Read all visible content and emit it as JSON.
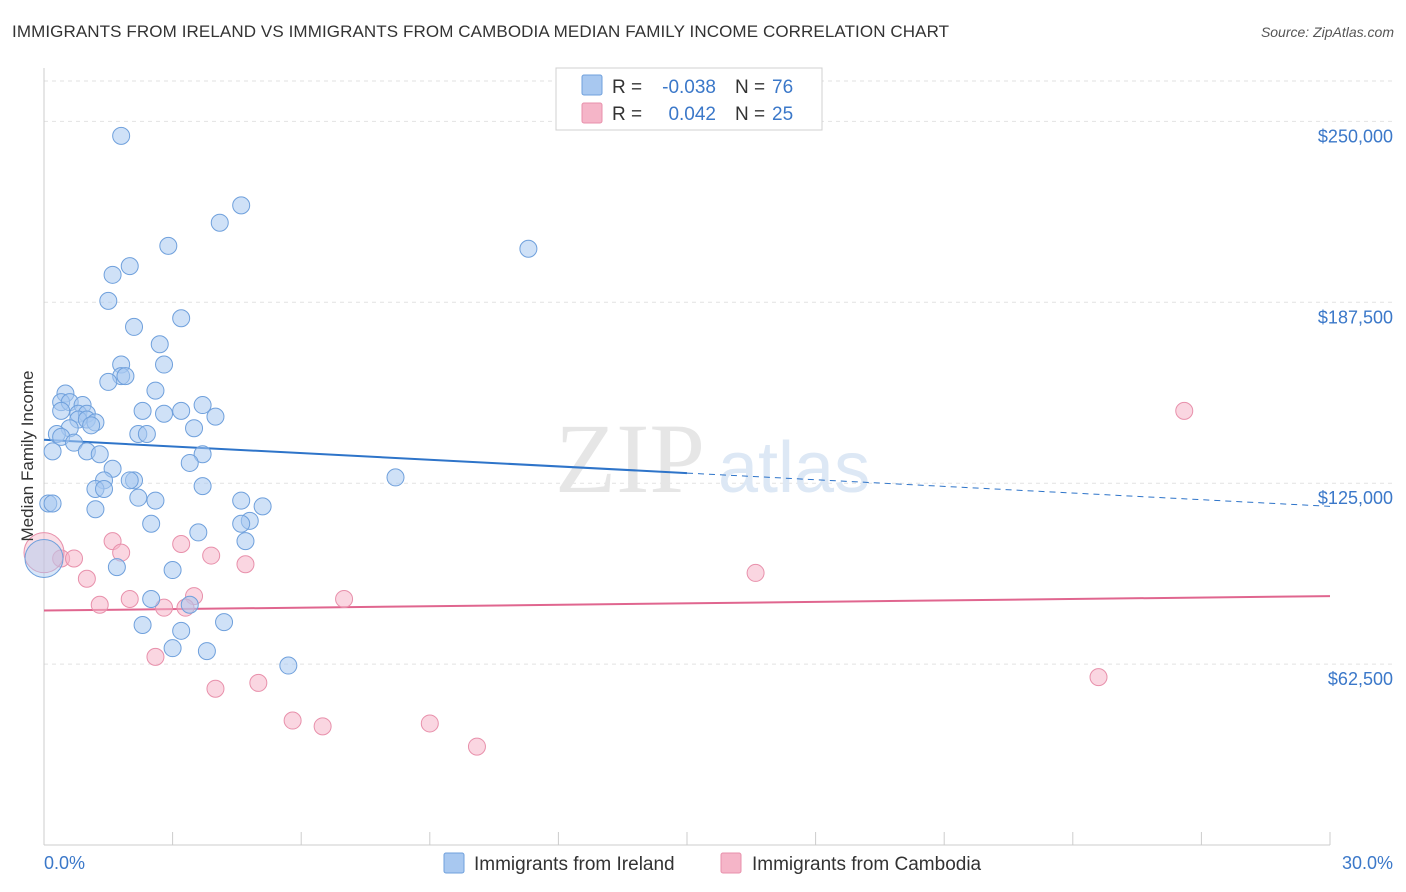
{
  "title": "IMMIGRANTS FROM IRELAND VS IMMIGRANTS FROM CAMBODIA MEDIAN FAMILY INCOME CORRELATION CHART",
  "source": "Source: ZipAtlas.com",
  "watermark": {
    "zip": "ZIP",
    "atlas": "atlas"
  },
  "legend_box": {
    "rows": [
      {
        "r_label": "R = ",
        "r_value": "-0.038",
        "n_label": "N = ",
        "n_value": "76",
        "color": "#a8c8f0"
      },
      {
        "r_label": "R = ",
        "r_value": "0.042",
        "n_label": "N = ",
        "n_value": "25",
        "color": "#f5b5c8"
      }
    ]
  },
  "colors": {
    "ireland_fill": "#a8c8f0",
    "ireland_stroke": "#6fa0dc",
    "ireland_line": "#2e74c9",
    "cambodia_fill": "#f5b5c8",
    "cambodia_stroke": "#e890ab",
    "cambodia_line": "#e0668f",
    "accent_text": "#3b78c9"
  },
  "chart_data": {
    "type": "scatter",
    "title": "IMMIGRANTS FROM IRELAND VS IMMIGRANTS FROM CAMBODIA MEDIAN FAMILY INCOME CORRELATION CHART",
    "xlabel": "",
    "ylabel": "Median Family Income",
    "xlim": [
      0,
      30
    ],
    "ylim": [
      0,
      265000
    ],
    "x_tick_labels": [
      "0.0%",
      "30.0%"
    ],
    "y_ticks": [
      62500,
      125000,
      187500,
      250000
    ],
    "y_tick_labels": [
      "$62,500",
      "$125,000",
      "$187,500",
      "$250,000"
    ],
    "grid": "horizontal dashed",
    "legend_position": "bottom-center",
    "series": [
      {
        "name": "Immigrants from Ireland",
        "r": -0.038,
        "n": 76,
        "trend": {
          "x": [
            0,
            30
          ],
          "y": [
            140000,
            117000
          ],
          "solid_until": 15
        },
        "points": [
          [
            1.8,
            245000
          ],
          [
            4.6,
            221000
          ],
          [
            4.1,
            215000
          ],
          [
            11.3,
            206000
          ],
          [
            2.9,
            207000
          ],
          [
            2.0,
            200000
          ],
          [
            1.6,
            197000
          ],
          [
            1.5,
            188000
          ],
          [
            3.2,
            182000
          ],
          [
            2.1,
            179000
          ],
          [
            2.7,
            173000
          ],
          [
            2.8,
            166000
          ],
          [
            1.8,
            166000
          ],
          [
            1.8,
            162000
          ],
          [
            1.9,
            162000
          ],
          [
            1.5,
            160000
          ],
          [
            2.6,
            157000
          ],
          [
            0.5,
            156000
          ],
          [
            0.4,
            153000
          ],
          [
            0.6,
            153000
          ],
          [
            0.9,
            152000
          ],
          [
            3.7,
            152000
          ],
          [
            0.4,
            150000
          ],
          [
            2.3,
            150000
          ],
          [
            3.2,
            150000
          ],
          [
            0.8,
            149000
          ],
          [
            1.0,
            149000
          ],
          [
            2.8,
            149000
          ],
          [
            4.0,
            148000
          ],
          [
            0.8,
            147000
          ],
          [
            1.0,
            147000
          ],
          [
            1.2,
            146000
          ],
          [
            1.1,
            145000
          ],
          [
            0.6,
            144000
          ],
          [
            3.5,
            144000
          ],
          [
            0.3,
            142000
          ],
          [
            2.2,
            142000
          ],
          [
            2.4,
            142000
          ],
          [
            0.4,
            141000
          ],
          [
            0.7,
            139000
          ],
          [
            1.0,
            136000
          ],
          [
            3.7,
            135000
          ],
          [
            0.2,
            136000
          ],
          [
            1.3,
            135000
          ],
          [
            3.4,
            132000
          ],
          [
            1.6,
            130000
          ],
          [
            8.2,
            127000
          ],
          [
            1.4,
            126000
          ],
          [
            2.1,
            126000
          ],
          [
            2.0,
            126000
          ],
          [
            1.2,
            123000
          ],
          [
            3.7,
            124000
          ],
          [
            1.4,
            123000
          ],
          [
            2.2,
            120000
          ],
          [
            0.1,
            118000
          ],
          [
            0.2,
            118000
          ],
          [
            4.6,
            119000
          ],
          [
            5.1,
            117000
          ],
          [
            2.6,
            119000
          ],
          [
            1.2,
            116000
          ],
          [
            4.8,
            112000
          ],
          [
            4.6,
            111000
          ],
          [
            2.5,
            111000
          ],
          [
            3.6,
            108000
          ],
          [
            4.7,
            105000
          ],
          [
            1.7,
            96000
          ],
          [
            3.0,
            95000
          ],
          [
            2.5,
            85000
          ],
          [
            3.4,
            83000
          ],
          [
            4.2,
            77000
          ],
          [
            2.3,
            76000
          ],
          [
            3.2,
            74000
          ],
          [
            3.0,
            68000
          ],
          [
            3.8,
            67000
          ],
          [
            5.7,
            62000
          ],
          [
            0.0,
            99000
          ]
        ]
      },
      {
        "name": "Immigrants from Cambodia",
        "r": 0.042,
        "n": 25,
        "trend": {
          "x": [
            0,
            30
          ],
          "y": [
            81000,
            86000
          ]
        },
        "points": [
          [
            26.6,
            150000
          ],
          [
            1.6,
            105000
          ],
          [
            3.2,
            104000
          ],
          [
            3.9,
            100000
          ],
          [
            1.8,
            101000
          ],
          [
            0.4,
            99000
          ],
          [
            0.7,
            99000
          ],
          [
            4.7,
            97000
          ],
          [
            16.6,
            94000
          ],
          [
            1.0,
            92000
          ],
          [
            2.0,
            85000
          ],
          [
            3.5,
            86000
          ],
          [
            7.0,
            85000
          ],
          [
            1.3,
            83000
          ],
          [
            2.8,
            82000
          ],
          [
            3.3,
            82000
          ],
          [
            2.6,
            65000
          ],
          [
            24.6,
            58000
          ],
          [
            5.0,
            56000
          ],
          [
            4.0,
            54000
          ],
          [
            5.8,
            43000
          ],
          [
            6.5,
            41000
          ],
          [
            9.0,
            42000
          ],
          [
            10.1,
            34000
          ],
          [
            0.0,
            101000
          ]
        ]
      }
    ]
  },
  "bottom_legend": [
    {
      "label": "Immigrants from Ireland",
      "color": "#a8c8f0"
    },
    {
      "label": "Immigrants from Cambodia",
      "color": "#f5b5c8"
    }
  ]
}
